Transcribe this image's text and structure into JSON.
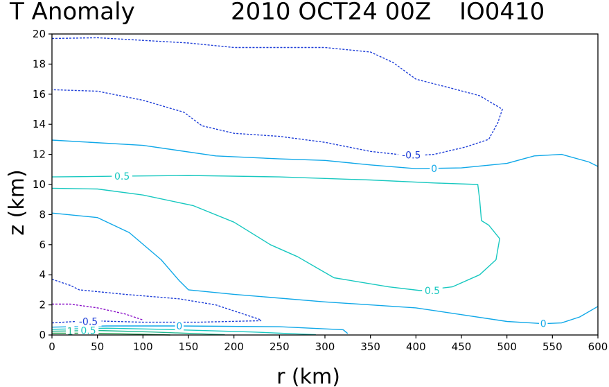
{
  "header": {
    "variable": "T Anomaly",
    "datetime": "2010 OCT24 00Z",
    "case_id": "IO0410"
  },
  "chart_data": {
    "type": "contour",
    "title": "T Anomaly   2010 OCT24 00Z   IO0410",
    "xlabel": "r (km)",
    "ylabel": "z (km)",
    "xlim": [
      0,
      600
    ],
    "ylim": [
      0,
      20
    ],
    "xticks": [
      0,
      50,
      100,
      150,
      200,
      250,
      300,
      350,
      400,
      450,
      500,
      550,
      600
    ],
    "yticks": [
      0,
      2,
      4,
      6,
      8,
      10,
      12,
      14,
      16,
      18,
      20
    ],
    "colors": {
      "neg_0_5": "#1f3fd8",
      "zero": "#10a8e8",
      "pos_0_5": "#18c8c0",
      "pos_1_0": "#20b890",
      "neg_1_0": "#8a10c8",
      "pos_1_5": "#209848"
    },
    "contours": [
      {
        "level": -0.5,
        "style": "dashed",
        "color": "neg_0_5",
        "label": "-0.5",
        "points": [
          [
            0,
            19.7
          ],
          [
            50,
            19.75
          ],
          [
            150,
            19.4
          ],
          [
            200,
            19.1
          ],
          [
            300,
            19.1
          ],
          [
            350,
            18.8
          ],
          [
            375,
            18.1
          ],
          [
            400,
            17.0
          ],
          [
            445,
            16.3
          ],
          [
            470,
            15.9
          ],
          [
            495,
            15.0
          ],
          [
            490,
            14.1
          ],
          [
            480,
            13.0
          ],
          [
            455,
            12.5
          ],
          [
            420,
            12.0
          ],
          [
            395,
            11.9
          ],
          [
            350,
            12.2
          ],
          [
            300,
            12.8
          ],
          [
            250,
            13.2
          ],
          [
            200,
            13.4
          ],
          [
            165,
            13.9
          ],
          [
            145,
            14.8
          ],
          [
            100,
            15.6
          ],
          [
            50,
            16.2
          ],
          [
            0,
            16.3
          ]
        ]
      },
      {
        "level": 0,
        "style": "solid",
        "color": "zero",
        "label": "0",
        "points": [
          [
            0,
            12.95
          ],
          [
            100,
            12.6
          ],
          [
            180,
            11.9
          ],
          [
            250,
            11.7
          ],
          [
            300,
            11.6
          ],
          [
            350,
            11.3
          ],
          [
            400,
            11.05
          ],
          [
            450,
            11.1
          ],
          [
            500,
            11.4
          ],
          [
            530,
            11.9
          ],
          [
            560,
            12.0
          ],
          [
            590,
            11.5
          ],
          [
            600,
            11.2
          ]
        ]
      },
      {
        "level": 0.5,
        "style": "solid",
        "color": "pos_0_5",
        "label": "0.5",
        "points": [
          [
            0,
            10.5
          ],
          [
            70,
            10.55
          ],
          [
            150,
            10.6
          ],
          [
            250,
            10.5
          ],
          [
            350,
            10.3
          ],
          [
            420,
            10.1
          ],
          [
            468,
            10.0
          ],
          [
            470,
            9.0
          ],
          [
            472,
            7.6
          ],
          [
            480,
            7.3
          ],
          [
            492,
            6.4
          ],
          [
            488,
            5.0
          ],
          [
            470,
            4.0
          ],
          [
            440,
            3.2
          ],
          [
            405,
            2.95
          ],
          [
            370,
            3.2
          ],
          [
            310,
            3.8
          ],
          [
            270,
            5.2
          ],
          [
            240,
            6.0
          ],
          [
            200,
            7.5
          ],
          [
            155,
            8.6
          ],
          [
            100,
            9.3
          ],
          [
            50,
            9.7
          ],
          [
            0,
            9.75
          ]
        ]
      },
      {
        "level": 0,
        "style": "solid",
        "color": "zero",
        "label": "0",
        "points": [
          [
            0,
            8.1
          ],
          [
            50,
            7.8
          ],
          [
            85,
            6.8
          ],
          [
            120,
            5.0
          ],
          [
            140,
            3.6
          ],
          [
            150,
            3.0
          ],
          [
            200,
            2.7
          ],
          [
            300,
            2.2
          ],
          [
            400,
            1.8
          ],
          [
            450,
            1.35
          ],
          [
            500,
            0.9
          ],
          [
            540,
            0.75
          ],
          [
            560,
            0.8
          ],
          [
            580,
            1.2
          ],
          [
            600,
            1.9
          ]
        ]
      },
      {
        "level": -0.5,
        "style": "dashed",
        "color": "neg_0_5",
        "label": "",
        "points": [
          [
            0,
            3.7
          ],
          [
            20,
            3.3
          ],
          [
            30,
            3.0
          ],
          [
            80,
            2.7
          ],
          [
            140,
            2.4
          ],
          [
            180,
            2.0
          ],
          [
            200,
            1.6
          ],
          [
            230,
            1.0
          ]
        ]
      },
      {
        "level": -1.0,
        "style": "dashed",
        "color": "neg_1_0",
        "label": "",
        "points": [
          [
            0,
            2.05
          ],
          [
            20,
            2.05
          ],
          [
            50,
            1.8
          ],
          [
            80,
            1.4
          ],
          [
            100,
            1.0
          ]
        ]
      },
      {
        "level": -0.5,
        "style": "dashed",
        "color": "neg_0_5",
        "label": "-0.5",
        "points": [
          [
            0,
            0.8
          ],
          [
            40,
            0.95
          ],
          [
            100,
            0.85
          ],
          [
            160,
            0.85
          ],
          [
            230,
            0.95
          ]
        ]
      },
      {
        "level": 0,
        "style": "solid",
        "color": "zero",
        "label": "0",
        "points": [
          [
            0,
            0.52
          ],
          [
            60,
            0.6
          ],
          [
            140,
            0.6
          ],
          [
            250,
            0.55
          ],
          [
            320,
            0.35
          ],
          [
            325,
            0.1
          ]
        ]
      },
      {
        "level": 0.5,
        "style": "solid",
        "color": "pos_0_5",
        "label": "0.5",
        "points": [
          [
            0,
            0.38
          ],
          [
            60,
            0.45
          ],
          [
            120,
            0.38
          ],
          [
            220,
            0.2
          ],
          [
            290,
            0.02
          ]
        ]
      },
      {
        "level": 1.0,
        "style": "solid",
        "color": "pos_1_0",
        "label": "1",
        "points": [
          [
            0,
            0.25
          ],
          [
            50,
            0.3
          ],
          [
            110,
            0.2
          ],
          [
            190,
            0.02
          ]
        ]
      },
      {
        "level": 1.5,
        "style": "solid",
        "color": "pos_1_5",
        "label": "",
        "points": [
          [
            0,
            0.12
          ],
          [
            40,
            0.12
          ],
          [
            100,
            0.05
          ],
          [
            130,
            0.0
          ]
        ]
      }
    ],
    "contour_labels": [
      {
        "text": "-0.5",
        "x": 395,
        "y": 11.95,
        "color": "neg_0_5"
      },
      {
        "text": "0",
        "x": 420,
        "y": 11.05,
        "color": "zero"
      },
      {
        "text": "0.5",
        "x": 77,
        "y": 10.55,
        "color": "pos_0_5"
      },
      {
        "text": "0.5",
        "x": 418,
        "y": 2.95,
        "color": "pos_0_5"
      },
      {
        "text": "0",
        "x": 540,
        "y": 0.75,
        "color": "zero"
      },
      {
        "text": "-0.5",
        "x": 40,
        "y": 0.9,
        "color": "neg_0_5"
      },
      {
        "text": "0",
        "x": 140,
        "y": 0.6,
        "color": "zero"
      },
      {
        "text": "1",
        "x": 20,
        "y": 0.25,
        "color": "pos_1_0"
      },
      {
        "text": "0.5",
        "x": 40,
        "y": 0.3,
        "color": "pos_0_5"
      }
    ]
  }
}
